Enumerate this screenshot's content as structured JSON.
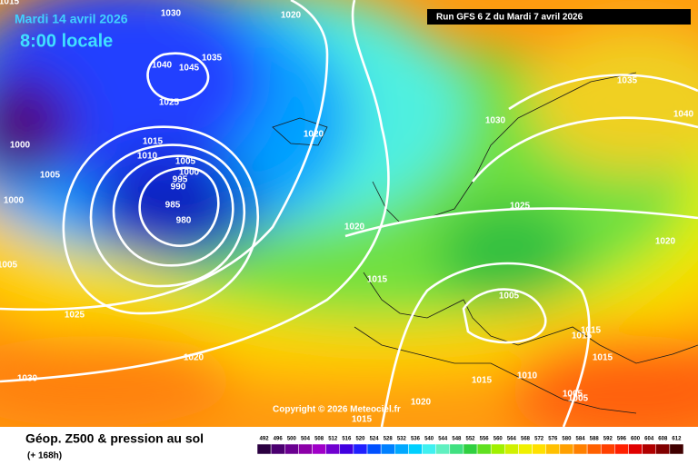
{
  "header": {
    "date": "Mardi 14 avril 2026",
    "time": "8:00 locale",
    "run": "Run GFS 6 Z du Mardi 7 avril 2026"
  },
  "copyright": "Copyright © 2026 Meteociel.fr",
  "caption": {
    "title": "Géop. Z500 & pression au sol",
    "lead": "(+ 168h)"
  },
  "isobar_labels": [
    1015,
    1030,
    1020,
    1040,
    1045,
    1035,
    1025,
    1000,
    1015,
    1010,
    1005,
    1005,
    1000,
    995,
    990,
    985,
    980,
    1000,
    1005,
    1020,
    1030,
    1035,
    1040,
    1025,
    1020,
    1020,
    1015,
    1005,
    1025,
    1015,
    1015,
    1015,
    1020,
    1030,
    1015,
    1010,
    1005,
    1005,
    1020,
    1015
  ],
  "legend": {
    "values": [
      492,
      496,
      500,
      504,
      508,
      512,
      516,
      520,
      524,
      528,
      532,
      536,
      540,
      544,
      548,
      552,
      556,
      560,
      564,
      568,
      572,
      576,
      580,
      584,
      588,
      592,
      596,
      600,
      604,
      608,
      612
    ],
    "colors": [
      "#2a0040",
      "#4b0070",
      "#6a0090",
      "#8c00a8",
      "#a000c8",
      "#7000d0",
      "#4000e0",
      "#2020ff",
      "#0050ff",
      "#0080ff",
      "#00a8ff",
      "#00d0ff",
      "#40f0f0",
      "#60f0c0",
      "#40e080",
      "#30d040",
      "#60e020",
      "#a0f000",
      "#d0f000",
      "#f0f000",
      "#ffe000",
      "#ffc000",
      "#ffa000",
      "#ff8000",
      "#ff6000",
      "#ff4000",
      "#ff2000",
      "#e00000",
      "#b00000",
      "#800000",
      "#400000"
    ]
  }
}
